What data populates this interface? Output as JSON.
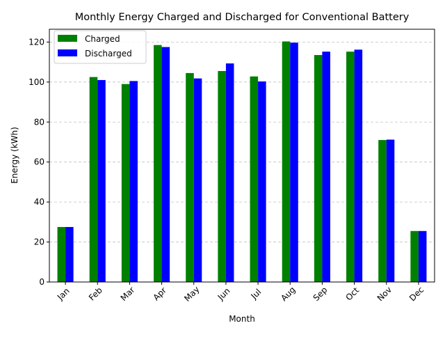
{
  "chart_data": {
    "type": "bar",
    "title": "Monthly Energy Charged and Discharged for Conventional Battery",
    "xlabel": "Month",
    "ylabel": "Energy (kWh)",
    "categories": [
      "Jan",
      "Feb",
      "Mar",
      "Apr",
      "May",
      "Jun",
      "Jul",
      "Aug",
      "Sep",
      "Oct",
      "Nov",
      "Dec"
    ],
    "series": [
      {
        "name": "Charged",
        "color": "#008000",
        "values": [
          27.5,
          102.5,
          99.0,
          118.5,
          104.5,
          105.5,
          102.8,
          120.3,
          113.5,
          115.2,
          71.0,
          25.5
        ]
      },
      {
        "name": "Discharged",
        "color": "#0000ff",
        "values": [
          27.5,
          101.0,
          100.5,
          117.5,
          101.8,
          109.3,
          100.3,
          119.7,
          115.2,
          116.2,
          71.2,
          25.5
        ]
      }
    ],
    "ylim": [
      0,
      126.4
    ],
    "yticks": [
      0,
      20,
      40,
      60,
      80,
      100,
      120
    ],
    "grid": "y-dashed",
    "legend": "top-left"
  }
}
